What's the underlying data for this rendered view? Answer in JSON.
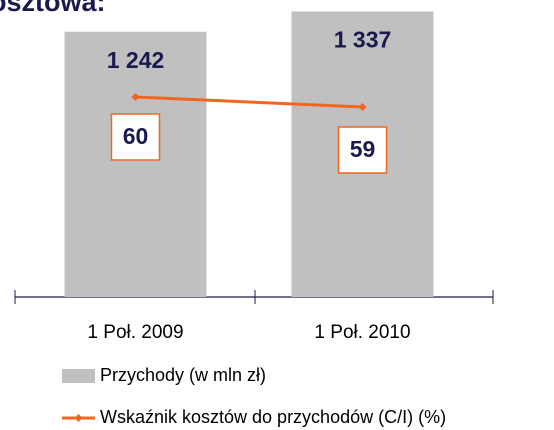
{
  "chart_data": {
    "type": "bar_line",
    "title": "osztowa:",
    "categories": [
      "1 Poł. 2009",
      "1 Poł. 2010"
    ],
    "series": [
      {
        "name": "Przychody (w mln zł)",
        "type": "bar",
        "color": "#c0c0c0",
        "values": [
          1242,
          1337
        ],
        "value_labels": [
          "1 242",
          "1 337"
        ]
      },
      {
        "name": "Wskaźnik kosztów do przychodów (C/I) (%)",
        "type": "line",
        "axis": "y2",
        "color": "#f26522",
        "values": [
          60,
          59
        ]
      }
    ],
    "ylim": [
      0,
      1400
    ],
    "y2lim": [
      50,
      70
    ]
  }
}
